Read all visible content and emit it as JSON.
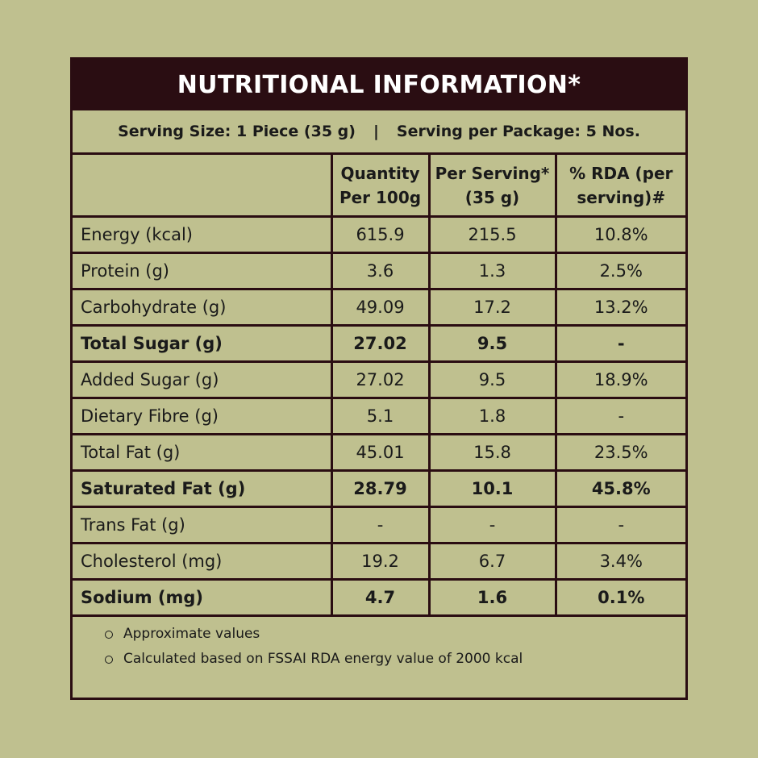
{
  "title": "NUTRITIONAL INFORMATION*",
  "serving": {
    "size": "Serving Size: 1 Piece (35 g)",
    "separator": "|",
    "per_package": "Serving per Package: 5 Nos."
  },
  "headers": [
    "",
    "Quantity Per 100g",
    "Per Serving* (35 g)",
    "% RDA (per serving)#"
  ],
  "rows": [
    {
      "label": "Energy (kcal)",
      "per100": "615.9",
      "serving": "215.5",
      "rda": "10.8%",
      "bold": false
    },
    {
      "label": "Protein (g)",
      "per100": "3.6",
      "serving": "1.3",
      "rda": "2.5%",
      "bold": false
    },
    {
      "label": "Carbohydrate (g)",
      "per100": "49.09",
      "serving": "17.2",
      "rda": "13.2%",
      "bold": false
    },
    {
      "label": "Total Sugar (g)",
      "per100": "27.02",
      "serving": "9.5",
      "rda": "-",
      "bold": true
    },
    {
      "label": "Added Sugar (g)",
      "per100": "27.02",
      "serving": "9.5",
      "rda": "18.9%",
      "bold": false
    },
    {
      "label": "Dietary Fibre (g)",
      "per100": "5.1",
      "serving": "1.8",
      "rda": "-",
      "bold": false
    },
    {
      "label": "Total Fat (g)",
      "per100": "45.01",
      "serving": "15.8",
      "rda": "23.5%",
      "bold": false
    },
    {
      "label": "Saturated Fat (g)",
      "per100": "28.79",
      "serving": "10.1",
      "rda": "45.8%",
      "bold": true
    },
    {
      "label": "Trans Fat (g)",
      "per100": "-",
      "serving": "-",
      "rda": "-",
      "bold": false
    },
    {
      "label": "Cholesterol (mg)",
      "per100": "19.2",
      "serving": "6.7",
      "rda": "3.4%",
      "bold": false
    },
    {
      "label": "Sodium (mg)",
      "per100": "4.7",
      "serving": "1.6",
      "rda": "0.1%",
      "bold": true
    }
  ],
  "footnotes": [
    "Approximate values",
    "Calculated based on FSSAI RDA energy value of 2000 kcal"
  ],
  "colors": {
    "background": "#bfc08f",
    "header_bar": "#2a0d12",
    "title_text": "#ffffff"
  }
}
